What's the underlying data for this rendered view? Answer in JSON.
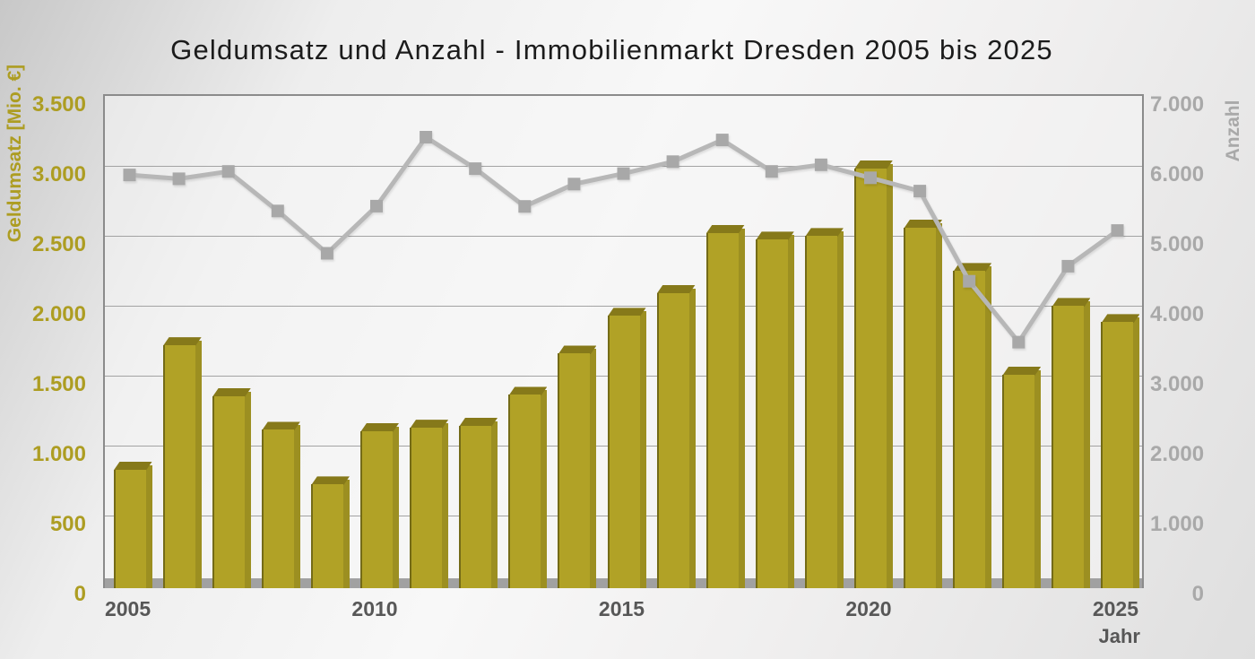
{
  "page": {
    "title": "Geldumsatz und Anzahl - Immobilienmarkt Dresden 2005 bis 2025"
  },
  "chart_data": {
    "type": "bar",
    "subtype": "combo-bar-line-dual-axis",
    "title": "Geldumsatz und Anzahl - Immobilienmarkt Dresden 2005 bis 2025",
    "categories": [
      2005,
      2006,
      2007,
      2008,
      2009,
      2010,
      2011,
      2012,
      2013,
      2014,
      2015,
      2016,
      2017,
      2018,
      2019,
      2020,
      2021,
      2022,
      2023,
      2024,
      2025
    ],
    "series": [
      {
        "name": "Geldumsatz",
        "type": "bar",
        "axis": "left",
        "values": [
          885,
          1775,
          1410,
          1170,
          780,
          1160,
          1185,
          1200,
          1420,
          1715,
          1985,
          2150,
          2580,
          2530,
          2555,
          3040,
          2615,
          2305,
          1565,
          2055,
          1940
        ]
      },
      {
        "name": "Anzahl",
        "type": "line",
        "axis": "right",
        "marker": "square",
        "values": [
          5870,
          5815,
          5920,
          5355,
          4750,
          5425,
          6410,
          5960,
          5420,
          5740,
          5890,
          6060,
          6370,
          5920,
          6015,
          5830,
          5640,
          4350,
          3480,
          4565,
          5075
        ]
      }
    ],
    "left_axis": {
      "label": "Geldumsatz [Mio. €]",
      "min": 0,
      "max": 3500,
      "step": 500,
      "tick_labels": [
        "0",
        "500",
        "1.000",
        "1.500",
        "2.000",
        "2.500",
        "3.000",
        "3.500"
      ]
    },
    "right_axis": {
      "label": "Anzahl",
      "min": 0,
      "max": 7000,
      "step": 1000,
      "tick_labels": [
        "0",
        "1.000",
        "2.000",
        "3.000",
        "4.000",
        "5.000",
        "6.000",
        "7.000"
      ]
    },
    "x_axis": {
      "label": "Jahr",
      "tick_labels": [
        "2005",
        "2010",
        "2015",
        "2020",
        "2025"
      ],
      "tick_slot_indices": [
        0,
        5,
        10,
        15,
        20
      ]
    },
    "legend": "none",
    "grid": true,
    "colors": {
      "bar_face": "#b1a226",
      "bar_bevel": "#86791a",
      "bar_side": "#9c8f21",
      "bar_left_edge": "#746b17",
      "line": "#b7b7b7",
      "marker": "#a8a8a8",
      "left_axis_text": "#ad9d22",
      "right_axis_text": "#a9a9a9",
      "x_axis_text": "#575757",
      "gridline": "#a3a3a3",
      "plot_border": "#8b8b8b",
      "baseline": "#a1a1a1",
      "title_text": "#1b1b1b"
    }
  }
}
